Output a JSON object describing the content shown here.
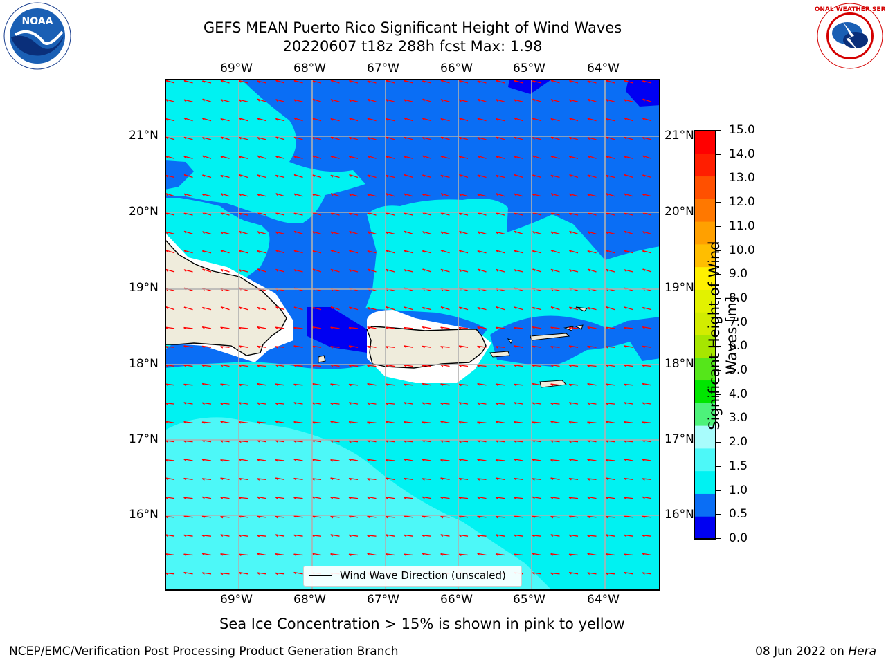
{
  "title": {
    "line1": "GEFS MEAN Puerto Rico Significant Height of Wind Waves",
    "line2": "20220607 t18z 288h fcst   Max: 1.98"
  },
  "map": {
    "lon_ticks": [
      "69°W",
      "68°W",
      "67°W",
      "66°W",
      "65°W",
      "64°W"
    ],
    "lat_ticks": [
      "21°N",
      "20°N",
      "19°N",
      "18°N",
      "17°N",
      "16°N"
    ],
    "lon_range": [
      -70.0,
      -63.25
    ],
    "lat_range": [
      15.0,
      21.75
    ],
    "field_colors": {
      "0.0-0.5": "#0000f2",
      "0.5-1.0": "#0a6ef5",
      "1.0-1.5": "#00f2f2",
      "1.5-2.0": "#4df8f8",
      "land": "#efecdc",
      "ice_free_gap": "#ffffff"
    },
    "arrow_color": "#ff0000",
    "arrow_direction": "toward west-northwest",
    "grid": true,
    "legend": {
      "label": "Wind Wave Direction (unscaled)",
      "placement": "bottom-center"
    }
  },
  "colorbar": {
    "label_line1": "Significant Height of Wind",
    "label_line2": "Waves [m]",
    "ticks": [
      "15.0",
      "14.0",
      "13.0",
      "12.0",
      "11.0",
      "10.0",
      "9.0",
      "8.0",
      "7.0",
      "6.0",
      "5.0",
      "4.0",
      "3.0",
      "2.0",
      "1.5",
      "1.0",
      "0.5",
      "0.0"
    ],
    "levels": [
      {
        "from": 0.0,
        "to": 0.5,
        "color": "#0000f2"
      },
      {
        "from": 0.5,
        "to": 1.0,
        "color": "#0a6ef5"
      },
      {
        "from": 1.0,
        "to": 1.5,
        "color": "#00f2f2"
      },
      {
        "from": 1.5,
        "to": 2.0,
        "color": "#4df8f8"
      },
      {
        "from": 2.0,
        "to": 3.0,
        "color": "#a8fcfc"
      },
      {
        "from": 3.0,
        "to": 4.0,
        "color": "#4df27a"
      },
      {
        "from": 4.0,
        "to": 5.0,
        "color": "#00e600"
      },
      {
        "from": 5.0,
        "to": 6.0,
        "color": "#55e61a"
      },
      {
        "from": 6.0,
        "to": 7.0,
        "color": "#a6e600"
      },
      {
        "from": 7.0,
        "to": 8.0,
        "color": "#d2ec00"
      },
      {
        "from": 8.0,
        "to": 9.0,
        "color": "#e2f200"
      },
      {
        "from": 9.0,
        "to": 10.0,
        "color": "#fff000"
      },
      {
        "from": 10.0,
        "to": 11.0,
        "color": "#ffbe00"
      },
      {
        "from": 11.0,
        "to": 12.0,
        "color": "#ffa000"
      },
      {
        "from": 12.0,
        "to": 13.0,
        "color": "#ff7800"
      },
      {
        "from": 13.0,
        "to": 14.0,
        "color": "#ff5000"
      },
      {
        "from": 14.0,
        "to": 15.0,
        "color": "#ff1e00"
      },
      {
        "from": 15.0,
        "to": 15.0,
        "color": "#ff0000"
      }
    ]
  },
  "sea_ice_note": "Sea Ice Concentration > 15% is shown in pink to yellow",
  "footer": {
    "left": "NCEP/EMC/Verification Post Processing Product Generation Branch",
    "right_prefix": "08 Jun 2022 on ",
    "right_machine": "Hera"
  },
  "logos": {
    "noaa_text": "NOAA",
    "nws_text": "NATIONAL WEATHER SERVICE"
  }
}
